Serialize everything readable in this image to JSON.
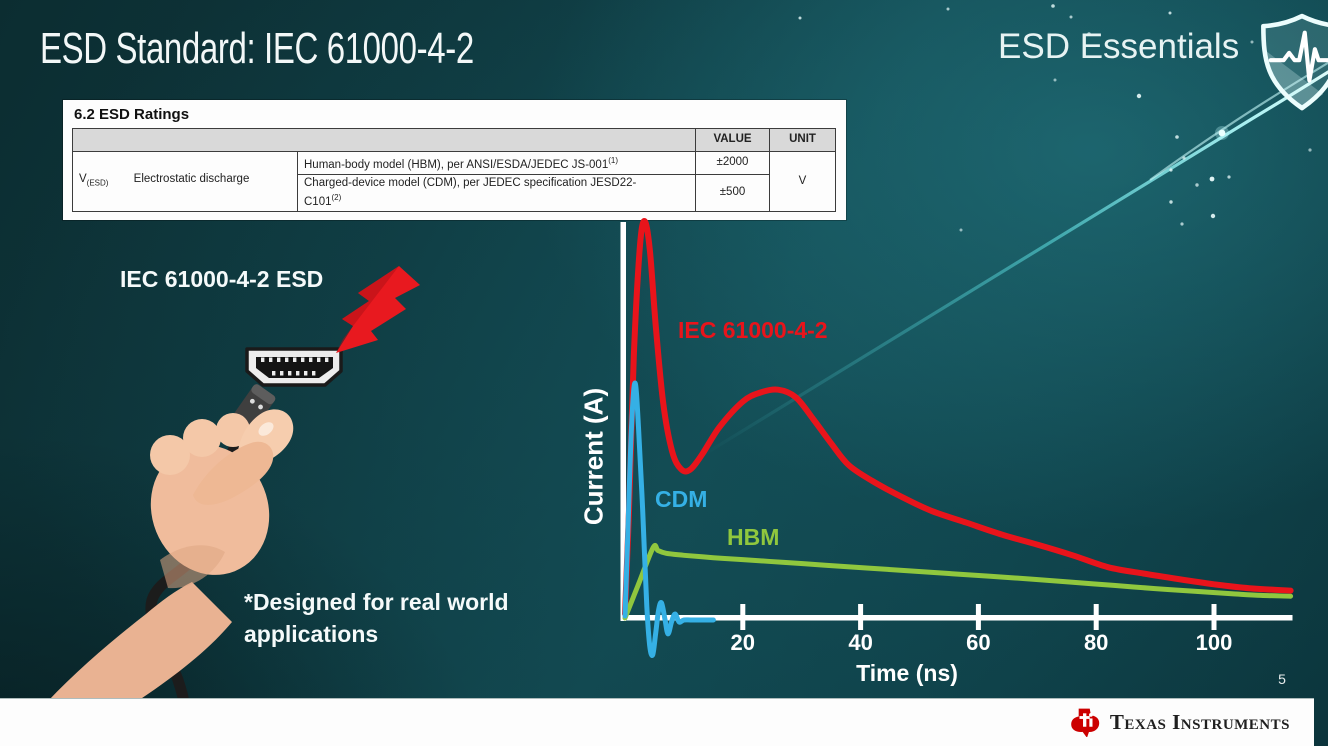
{
  "slide": {
    "title": "ESD Standard: IEC 61000-4-2",
    "brand": "ESD Essentials",
    "page_number": "5"
  },
  "ratings_table": {
    "section_heading": "6.2  ESD Ratings",
    "value_header": "VALUE",
    "unit_header": "UNIT",
    "symbol": "V",
    "symbol_subscript": "(ESD)",
    "parameter": "Electrostatic discharge",
    "rows": [
      {
        "description": "Human-body model (HBM), per ANSI/ESDA/JEDEC JS-001",
        "footnote_ref": "(1)",
        "value": "±2000"
      },
      {
        "description": "Charged-device model (CDM), per JEDEC specification JESD22-C101",
        "footnote_ref": "(2)",
        "value": "±500"
      }
    ],
    "unit": "V"
  },
  "illustration": {
    "caption": "IEC 61000-4-2 ESD",
    "footnote": "*Designed for real world applications"
  },
  "footer": {
    "brand": "Texas Instruments"
  },
  "colors": {
    "background_dark_teal": "#0c2d31",
    "background_light_teal": "#11464e",
    "streak_teal": "#7ef0f2",
    "axis_white": "#ffffff"
  },
  "chart_data": {
    "type": "line",
    "title": "",
    "xlabel": "Time (ns)",
    "ylabel": "Current (A)",
    "x_ticks": [
      20,
      40,
      60,
      80,
      100
    ],
    "xlim": [
      0,
      113
    ],
    "ylim_relative": [
      -0.1,
      1.05
    ],
    "grid": false,
    "y_axis_numeric": false,
    "legend_position": "inline colored labels",
    "notes": "Conceptual comparison of ESD discharge current waveforms; y values are relative current (no numeric scale shown).",
    "series": [
      {
        "name": "IEC 61000-4-2",
        "color": "#e8141b",
        "points": [
          [
            0,
            0.01
          ],
          [
            0.7,
            0.28
          ],
          [
            1.5,
            0.66
          ],
          [
            2.5,
            0.93
          ],
          [
            3.3,
            1.0
          ],
          [
            4.2,
            0.93
          ],
          [
            5.2,
            0.74
          ],
          [
            6.5,
            0.54
          ],
          [
            8,
            0.42
          ],
          [
            9.5,
            0.375
          ],
          [
            11,
            0.373
          ],
          [
            13,
            0.41
          ],
          [
            16,
            0.48
          ],
          [
            20,
            0.545
          ],
          [
            23,
            0.568
          ],
          [
            26,
            0.575
          ],
          [
            29,
            0.556
          ],
          [
            32,
            0.5
          ],
          [
            35,
            0.44
          ],
          [
            38,
            0.385
          ],
          [
            42,
            0.345
          ],
          [
            47,
            0.305
          ],
          [
            52,
            0.27
          ],
          [
            58,
            0.24
          ],
          [
            64,
            0.21
          ],
          [
            70,
            0.185
          ],
          [
            76,
            0.158
          ],
          [
            82,
            0.128
          ],
          [
            88,
            0.112
          ],
          [
            94,
            0.098
          ],
          [
            100,
            0.085
          ],
          [
            106,
            0.075
          ],
          [
            113,
            0.069
          ]
        ]
      },
      {
        "name": "CDM",
        "color": "#35b0e5",
        "points": [
          [
            0,
            0.005
          ],
          [
            0.5,
            0.22
          ],
          [
            1.1,
            0.48
          ],
          [
            1.7,
            0.592
          ],
          [
            2.3,
            0.48
          ],
          [
            3,
            0.27
          ],
          [
            3.7,
            0.03
          ],
          [
            4.2,
            -0.07
          ],
          [
            4.7,
            -0.093
          ],
          [
            5.2,
            -0.04
          ],
          [
            5.7,
            0.02
          ],
          [
            6.2,
            0.038
          ],
          [
            6.8,
            -0.005
          ],
          [
            7.3,
            -0.04
          ],
          [
            7.9,
            -0.01
          ],
          [
            8.5,
            0.01
          ],
          [
            9.2,
            -0.01
          ],
          [
            10,
            -0.005
          ],
          [
            11.5,
            -0.005
          ],
          [
            15,
            -0.005
          ]
        ]
      },
      {
        "name": "HBM",
        "color": "#90c73e",
        "points": [
          [
            0,
            0.0
          ],
          [
            2.4,
            0.089
          ],
          [
            4.8,
            0.178
          ],
          [
            5.6,
            0.17
          ],
          [
            7,
            0.163
          ],
          [
            10,
            0.158
          ],
          [
            15,
            0.152
          ],
          [
            20,
            0.147
          ],
          [
            27,
            0.14
          ],
          [
            34,
            0.133
          ],
          [
            41,
            0.126
          ],
          [
            48,
            0.119
          ],
          [
            55,
            0.112
          ],
          [
            62,
            0.105
          ],
          [
            69,
            0.098
          ],
          [
            76,
            0.09
          ],
          [
            83,
            0.082
          ],
          [
            90,
            0.074
          ],
          [
            97,
            0.067
          ],
          [
            103,
            0.061
          ],
          [
            108,
            0.057
          ],
          [
            113,
            0.055
          ]
        ]
      }
    ]
  }
}
